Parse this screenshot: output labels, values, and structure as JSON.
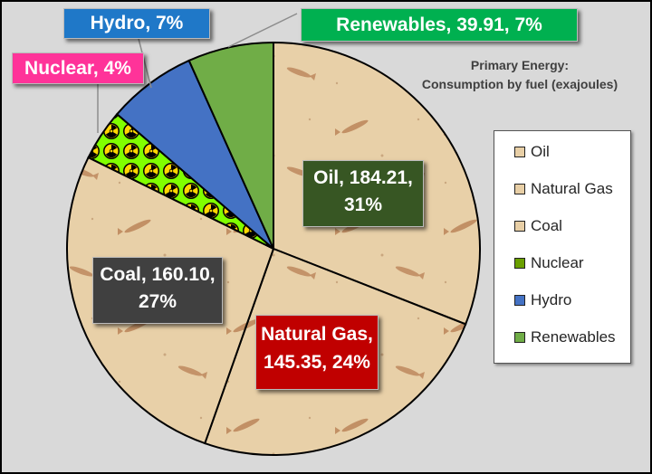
{
  "title_line1": "Primary Energy:",
  "title_line2": "Consumption by fuel (exajoules)",
  "chart_data": {
    "type": "pie",
    "title": "Primary Energy: Consumption by fuel (exajoules)",
    "categories": [
      "Oil",
      "Natural Gas",
      "Coal",
      "Nuclear",
      "Hydro",
      "Renewables"
    ],
    "values": [
      184.21,
      145.35,
      160.1,
      23.9,
      41.5,
      39.91
    ],
    "percent_labels": [
      "31%",
      "24%",
      "27%",
      "4%",
      "7%",
      "7%"
    ],
    "colors": [
      "#e8cfa6",
      "#e8cfa6",
      "#e8cfa6",
      "#80ff00",
      "#4472c4",
      "#70ad47"
    ],
    "legend_position": "right"
  },
  "labels": {
    "oil": [
      "Oil, 184.21,",
      "31%"
    ],
    "gas": [
      "Natural Gas,",
      "145.35, 24%"
    ],
    "coal": [
      "Coal, 160.10,",
      "27%"
    ],
    "nuclear": "Nuclear, 4%",
    "hydro": "Hydro, 7%",
    "renewables": "Renewables, 39.91, 7%"
  },
  "label_colors": {
    "oil": "#375623",
    "gas": "#c00000",
    "coal": "#404040",
    "nuclear": "#ff3399",
    "hydro": "#1f78c8",
    "renewables": "#00b050"
  },
  "legend": [
    "Oil",
    "Natural Gas",
    "Coal",
    "Nuclear",
    "Hydro",
    "Renewables"
  ],
  "legend_colors": [
    "#e8cfa6",
    "#e8cfa6",
    "#e8cfa6",
    "#6aa000",
    "#4472c4",
    "#70ad47"
  ]
}
